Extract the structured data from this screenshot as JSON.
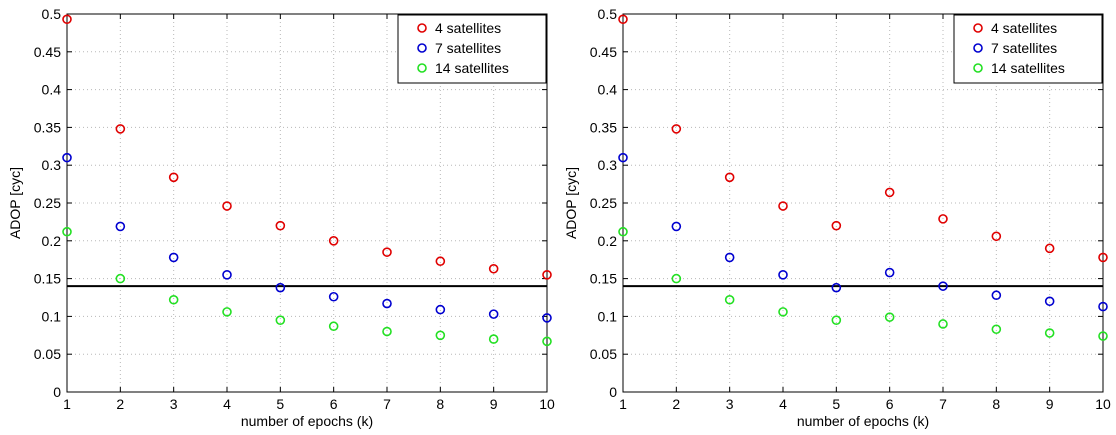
{
  "colors": {
    "series_4": "#e00000",
    "series_7": "#0000d0",
    "series_14": "#22e022",
    "threshold": "#000000"
  },
  "chart_data": [
    {
      "type": "scatter",
      "title": "",
      "xlabel": "number of epochs (k)",
      "ylabel": "ADOP [cyc]",
      "xlim": [
        1,
        10
      ],
      "ylim": [
        0,
        0.5
      ],
      "xticks": [
        "1",
        "2",
        "3",
        "4",
        "5",
        "6",
        "7",
        "8",
        "9",
        "10"
      ],
      "yticks": [
        "0",
        "0.05",
        "0.1",
        "0.15",
        "0.2",
        "0.25",
        "0.3",
        "0.35",
        "0.4",
        "0.45",
        "0.5"
      ],
      "grid": true,
      "legend_position": "top-right",
      "marker": "open-circle",
      "x": [
        1,
        2,
        3,
        4,
        5,
        6,
        7,
        8,
        9,
        10
      ],
      "series": [
        {
          "name": "4 satellites",
          "color_key": "series_4",
          "values": [
            0.493,
            0.348,
            0.284,
            0.246,
            0.22,
            0.2,
            0.185,
            0.173,
            0.163,
            0.155
          ]
        },
        {
          "name": "7 satellites",
          "color_key": "series_7",
          "values": [
            0.31,
            0.219,
            0.178,
            0.155,
            0.138,
            0.126,
            0.117,
            0.109,
            0.103,
            0.098
          ]
        },
        {
          "name": "14 satellites",
          "color_key": "series_14",
          "values": [
            0.212,
            0.15,
            0.122,
            0.106,
            0.095,
            0.087,
            0.08,
            0.075,
            0.07,
            0.067
          ]
        }
      ],
      "threshold": 0.14
    },
    {
      "type": "scatter",
      "title": "",
      "xlabel": "number of epochs (k)",
      "ylabel": "ADOP [cyc]",
      "xlim": [
        1,
        10
      ],
      "ylim": [
        0,
        0.5
      ],
      "xticks": [
        "1",
        "2",
        "3",
        "4",
        "5",
        "6",
        "7",
        "8",
        "9",
        "10"
      ],
      "yticks": [
        "0",
        "0.05",
        "0.1",
        "0.15",
        "0.2",
        "0.25",
        "0.3",
        "0.35",
        "0.4",
        "0.45",
        "0.5"
      ],
      "grid": true,
      "legend_position": "top-right",
      "marker": "open-circle",
      "x": [
        1,
        2,
        3,
        4,
        5,
        6,
        7,
        8,
        9,
        10
      ],
      "series": [
        {
          "name": "4 satellites",
          "color_key": "series_4",
          "values": [
            0.493,
            0.348,
            0.284,
            0.246,
            0.22,
            0.264,
            0.229,
            0.206,
            0.19,
            0.178
          ]
        },
        {
          "name": "7 satellites",
          "color_key": "series_7",
          "values": [
            0.31,
            0.219,
            0.178,
            0.155,
            0.138,
            0.158,
            0.14,
            0.128,
            0.12,
            0.113
          ]
        },
        {
          "name": "14 satellites",
          "color_key": "series_14",
          "values": [
            0.212,
            0.15,
            0.122,
            0.106,
            0.095,
            0.099,
            0.09,
            0.083,
            0.078,
            0.074
          ]
        }
      ],
      "threshold": 0.14
    }
  ]
}
